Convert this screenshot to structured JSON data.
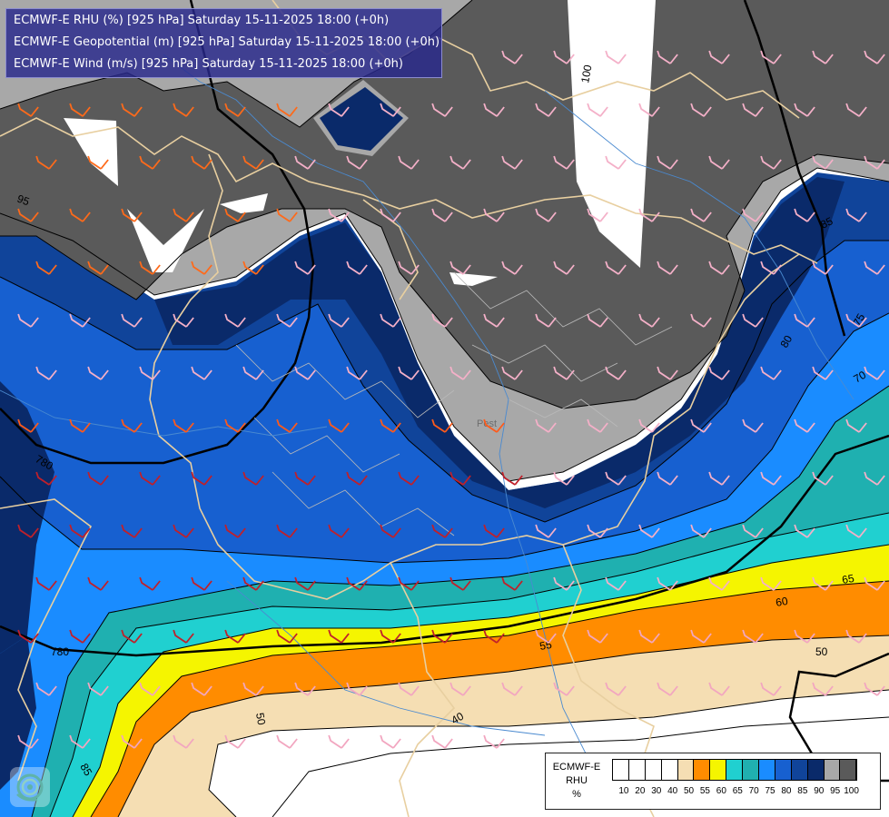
{
  "titles": [
    "ECMWF-E RHU (%) [925 hPa] Saturday 15-11-2025 18:00 (+0h)",
    "ECMWF-E Geopotential (m) [925 hPa] Saturday 15-11-2025 18:00 (+0h)",
    "ECMWF-E Wind (m/s) [925 hPa] Saturday 15-11-2025 18:00 (+0h)"
  ],
  "legend": {
    "model": "ECMWF-E",
    "variable": "RHU",
    "unit": "%",
    "ticks": [
      "10",
      "20",
      "30",
      "40",
      "50",
      "55",
      "60",
      "65",
      "70",
      "75",
      "80",
      "85",
      "90",
      "95",
      "100"
    ],
    "colors": [
      "#ffffff",
      "#ffffff",
      "#ffffff",
      "#ffffff",
      "#f5deb3",
      "#ff8c00",
      "#f5f500",
      "#20d0d0",
      "#20b0b0",
      "#1a8cff",
      "#1760d0",
      "#10449a",
      "#0a2a6a",
      "#a8a8a8",
      "#5a5a5a"
    ]
  },
  "map": {
    "rhu_contour_labels": [
      "95",
      "100",
      "85",
      "80",
      "75",
      "70",
      "65",
      "60",
      "55",
      "50",
      "40",
      "50",
      "85"
    ],
    "geopotential_labels": [
      "780",
      "780"
    ],
    "city_label": "Pest",
    "logo_icon": "ecmwf-swirl-icon"
  }
}
